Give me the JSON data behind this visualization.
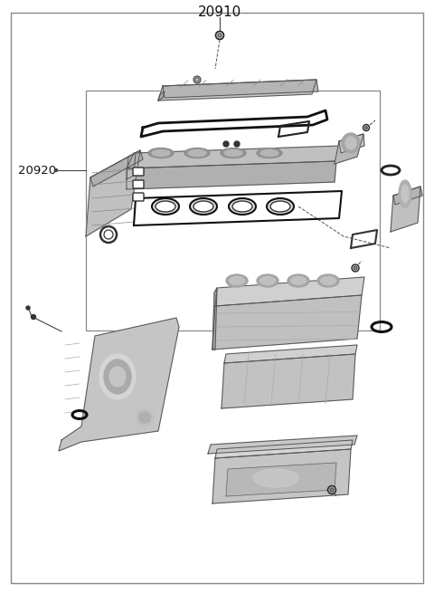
{
  "title": "20910",
  "label_20920": "20920",
  "bg_color": "#f5f5f5",
  "white": "#ffffff",
  "border_color": "#888888",
  "line_color": "#555555",
  "text_color": "#111111",
  "dark": "#222222",
  "mid_gray": "#999999",
  "light_gray": "#cccccc",
  "part_gray": "#b0b0b0",
  "fig_width": 4.8,
  "fig_height": 6.56,
  "dpi": 100
}
